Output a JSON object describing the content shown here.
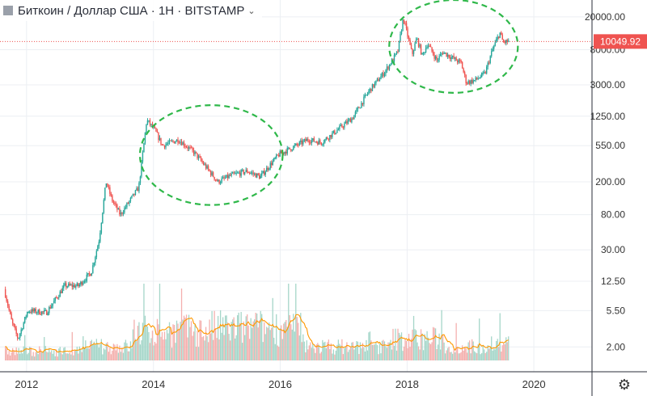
{
  "header": {
    "symbol_text": "Биткоин / Доллар США · 1Н · BITSTAMP",
    "chevron_icon": "chevron-down-icon",
    "logo_icon": "square-logo-icon"
  },
  "settings_icon": "gear-icon",
  "colors": {
    "up": "#26a69a",
    "up_volume": "#a5d6c9",
    "down": "#ef5350",
    "down_volume": "#f4b0ae",
    "price_line": "#ef5350",
    "ma_line": "#ff9800",
    "ellipse": "#2fb84a",
    "grid": "#eceff3",
    "axis_text": "#333333"
  },
  "chart_data": {
    "type": "candlestick",
    "title": "Биткоин / Доллар США · 1Н · BITSTAMP",
    "y_scale": "log",
    "xlim": [
      "2011-08-01",
      "2020-12-01"
    ],
    "ylim": [
      1.0,
      32000
    ],
    "x_ticks": [
      "2012",
      "2014",
      "2016",
      "2018",
      "2020"
    ],
    "y_ticks": [
      "20000.00",
      "8000.00",
      "3000.00",
      "1250.00",
      "550.00",
      "200.00",
      "80.00",
      "30.00",
      "12.50",
      "5.50",
      "2.00"
    ],
    "y_tick_values": [
      20000,
      8000,
      3000,
      1250,
      550,
      200,
      80,
      30,
      12.5,
      5.5,
      2
    ],
    "last_price_label": "10049.92",
    "last_price": 10049.92,
    "price_path": [
      [
        "2011-09-01",
        10
      ],
      [
        "2011-10-15",
        4
      ],
      [
        "2011-11-20",
        2.5
      ],
      [
        "2012-01-15",
        5.5
      ],
      [
        "2012-05-01",
        5.2
      ],
      [
        "2012-08-15",
        11
      ],
      [
        "2012-11-01",
        11
      ],
      [
        "2013-01-15",
        16
      ],
      [
        "2013-03-01",
        40
      ],
      [
        "2013-04-10",
        200
      ],
      [
        "2013-05-15",
        120
      ],
      [
        "2013-07-01",
        80
      ],
      [
        "2013-08-15",
        110
      ],
      [
        "2013-10-15",
        170
      ],
      [
        "2013-11-30",
        1120
      ],
      [
        "2014-01-15",
        850
      ],
      [
        "2014-03-01",
        550
      ],
      [
        "2014-06-01",
        650
      ],
      [
        "2014-09-01",
        450
      ],
      [
        "2015-01-14",
        200
      ],
      [
        "2015-04-01",
        240
      ],
      [
        "2015-07-01",
        270
      ],
      [
        "2015-09-15",
        230
      ],
      [
        "2015-11-15",
        330
      ],
      [
        "2016-01-01",
        430
      ],
      [
        "2016-06-15",
        650
      ],
      [
        "2016-09-01",
        600
      ],
      [
        "2017-01-01",
        950
      ],
      [
        "2017-03-01",
        1200
      ],
      [
        "2017-06-01",
        2500
      ],
      [
        "2017-09-01",
        4300
      ],
      [
        "2017-11-15",
        7500
      ],
      [
        "2017-12-17",
        19500
      ],
      [
        "2018-02-06",
        7000
      ],
      [
        "2018-03-05",
        11000
      ],
      [
        "2018-04-06",
        6700
      ],
      [
        "2018-05-05",
        9500
      ],
      [
        "2018-06-29",
        5900
      ],
      [
        "2018-08-01",
        7500
      ],
      [
        "2018-11-15",
        5500
      ],
      [
        "2018-12-15",
        3200
      ],
      [
        "2019-02-01",
        3400
      ],
      [
        "2019-04-01",
        4100
      ],
      [
        "2019-05-15",
        8000
      ],
      [
        "2019-06-26",
        12900
      ],
      [
        "2019-07-15",
        9800
      ],
      [
        "2019-08-10",
        10049.92
      ]
    ],
    "ellipses": [
      {
        "x_from": "2013-10-15",
        "x_to": "2016-01-15",
        "y_from": 105,
        "y_to": 1700
      },
      {
        "x_from": "2017-09-20",
        "x_to": "2019-10-01",
        "y_from": 2400,
        "y_to": 32000
      }
    ]
  }
}
